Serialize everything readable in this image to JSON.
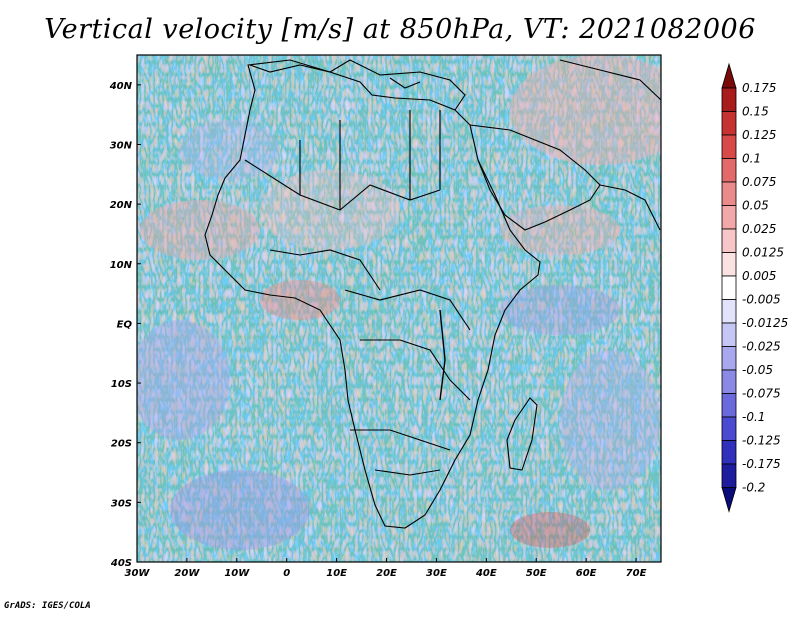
{
  "title": "Vertical velocity [m/s] at 850hPa, VT: 2021082006",
  "credit": "GrADS: IGES/COLA",
  "map": {
    "lat_labels": [
      "40N",
      "30N",
      "20N",
      "10N",
      "EQ",
      "10S",
      "20S",
      "30S",
      "40S"
    ],
    "lon_labels": [
      "30W",
      "20W",
      "10W",
      "0",
      "10E",
      "20E",
      "30E",
      "40E",
      "50E",
      "60E",
      "70E"
    ],
    "lon_range": [
      -30,
      75
    ],
    "lat_range": [
      -40,
      45
    ]
  },
  "colorbar": {
    "labels": [
      "0.175",
      "0.15",
      "0.125",
      "0.1",
      "0.075",
      "0.05",
      "0.025",
      "0.0125",
      "0.005",
      "-0.005",
      "-0.0125",
      "-0.025",
      "-0.05",
      "-0.075",
      "-0.1",
      "-0.125",
      "-0.175",
      "-0.2"
    ],
    "colors": [
      "#7a0a0a",
      "#a81c1c",
      "#c63232",
      "#d84a4a",
      "#e36a6a",
      "#eb8a8a",
      "#f2a8a8",
      "#f7c6c6",
      "#fbe2e2",
      "#ffffff",
      "#e2e2fb",
      "#c6c6f4",
      "#a8a8ee",
      "#8a8ae6",
      "#6a6adc",
      "#4a4ad2",
      "#3030bc",
      "#1c1c9c",
      "#0a0a7a"
    ]
  }
}
